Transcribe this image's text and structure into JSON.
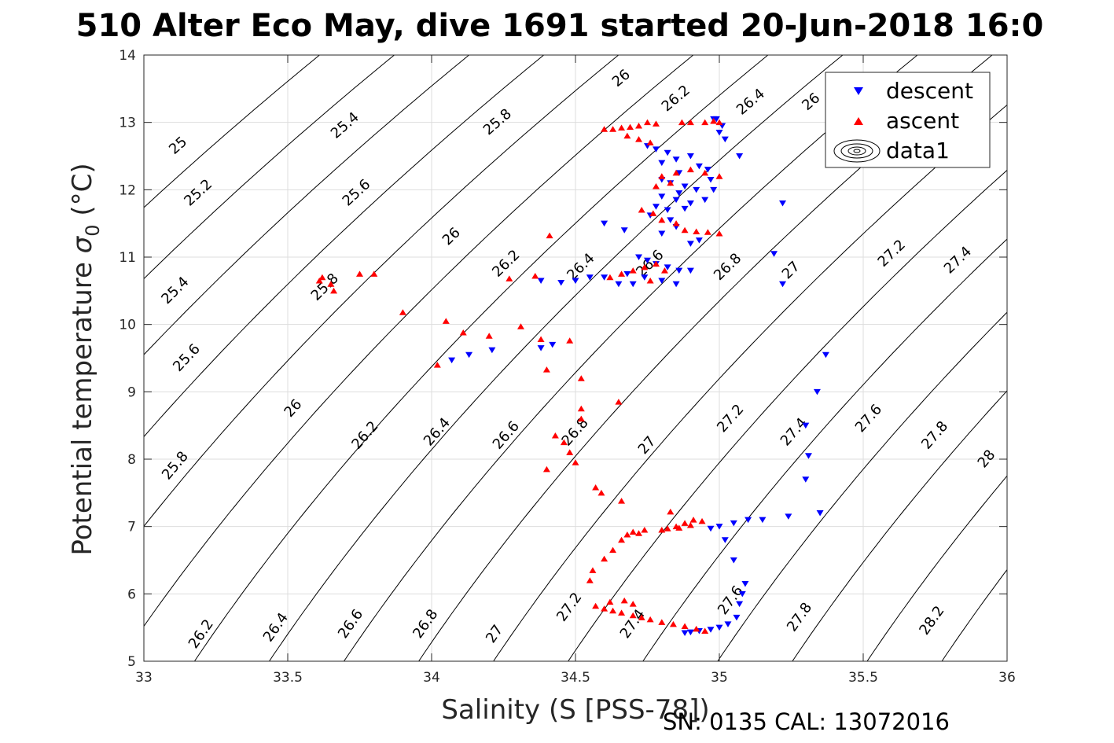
{
  "chart_data": {
    "type": "scatter",
    "title": "510 Alter Eco May, dive 1691 started 20-Jun-2018 16:0",
    "xlabel": "Salinity (S [PSS-78])",
    "ylabel_main": "Potential temperature ",
    "ylabel_sigma": "σ",
    "ylabel_sub": "0",
    "ylabel_unit": " (°C)",
    "footer": "SN: 0135  CAL: 13072016",
    "xlim": [
      33,
      36
    ],
    "ylim": [
      5,
      14
    ],
    "xticks": [
      "33",
      "33.5",
      "34",
      "34.5",
      "35",
      "35.5",
      "36"
    ],
    "yticks": [
      "5",
      "6",
      "7",
      "8",
      "9",
      "10",
      "11",
      "12",
      "13",
      "14"
    ],
    "grid": true,
    "legend_position": "top-right",
    "legend": [
      {
        "label": "descent",
        "color": "#0000ff",
        "marker": "triangle-down"
      },
      {
        "label": "ascent",
        "color": "#ff0000",
        "marker": "triangle-up"
      },
      {
        "label": "data1",
        "color": "#000000",
        "marker": "contour"
      }
    ],
    "contours": [
      {
        "level": 25.0,
        "label": "25"
      },
      {
        "level": 25.2,
        "label": "25.2"
      },
      {
        "level": 25.4,
        "label": "25.4"
      },
      {
        "level": 25.6,
        "label": "25.6"
      },
      {
        "level": 25.8,
        "label": "25.8"
      },
      {
        "level": 26.0,
        "label": "26"
      },
      {
        "level": 26.2,
        "label": "26.2"
      },
      {
        "level": 26.4,
        "label": "26.4"
      },
      {
        "level": 26.6,
        "label": "26.6"
      },
      {
        "level": 26.8,
        "label": "26.8"
      },
      {
        "level": 27.0,
        "label": "27"
      },
      {
        "level": 27.2,
        "label": "27.2"
      },
      {
        "level": 27.4,
        "label": "27.4"
      },
      {
        "level": 27.6,
        "label": "27.6"
      },
      {
        "level": 27.8,
        "label": "27.8"
      },
      {
        "level": 28.0,
        "label": "28"
      },
      {
        "level": 28.2,
        "label": "28.2"
      }
    ],
    "contour_labels": [
      {
        "text": "25",
        "x": 33.12,
        "y": 12.65
      },
      {
        "text": "25.2",
        "x": 33.19,
        "y": 11.95
      },
      {
        "text": "25.4",
        "x": 33.11,
        "y": 10.5
      },
      {
        "text": "25.6",
        "x": 33.15,
        "y": 9.5
      },
      {
        "text": "25.8",
        "x": 33.11,
        "y": 7.9
      },
      {
        "text": "26.2",
        "x": 33.2,
        "y": 5.4
      },
      {
        "text": "25.4",
        "x": 33.7,
        "y": 12.95
      },
      {
        "text": "25.6",
        "x": 33.74,
        "y": 11.95
      },
      {
        "text": "25.8",
        "x": 33.63,
        "y": 10.55
      },
      {
        "text": "26",
        "x": 33.52,
        "y": 8.75
      },
      {
        "text": "26.4",
        "x": 33.46,
        "y": 5.5
      },
      {
        "text": "25.8",
        "x": 34.23,
        "y": 13.0
      },
      {
        "text": "26",
        "x": 34.07,
        "y": 11.3
      },
      {
        "text": "26.2",
        "x": 33.77,
        "y": 8.35
      },
      {
        "text": "26.6",
        "x": 33.72,
        "y": 5.55
      },
      {
        "text": "26",
        "x": 34.66,
        "y": 13.65
      },
      {
        "text": "26.2",
        "x": 34.26,
        "y": 10.9
      },
      {
        "text": "26.4",
        "x": 34.02,
        "y": 8.4
      },
      {
        "text": "26.8",
        "x": 33.98,
        "y": 5.55
      },
      {
        "text": "26.2",
        "x": 34.85,
        "y": 13.35
      },
      {
        "text": "26.4",
        "x": 34.52,
        "y": 10.85
      },
      {
        "text": "26.6",
        "x": 34.26,
        "y": 8.35
      },
      {
        "text": "27",
        "x": 34.22,
        "y": 5.4
      },
      {
        "text": "26.4",
        "x": 35.11,
        "y": 13.3
      },
      {
        "text": "26.6",
        "x": 34.76,
        "y": 10.9
      },
      {
        "text": "26.8",
        "x": 34.5,
        "y": 8.4
      },
      {
        "text": "27.2",
        "x": 34.48,
        "y": 5.8
      },
      {
        "text": "26",
        "x": 35.32,
        "y": 13.3
      },
      {
        "text": "26.8",
        "x": 35.03,
        "y": 10.85
      },
      {
        "text": "27",
        "x": 34.75,
        "y": 8.2
      },
      {
        "text": "27.4",
        "x": 34.7,
        "y": 5.55
      },
      {
        "text": "27",
        "x": 35.25,
        "y": 10.8
      },
      {
        "text": "27.2",
        "x": 35.04,
        "y": 8.6
      },
      {
        "text": "27.6",
        "x": 35.04,
        "y": 5.9
      },
      {
        "text": "27.2",
        "x": 35.6,
        "y": 11.05
      },
      {
        "text": "27.4",
        "x": 35.26,
        "y": 8.4
      },
      {
        "text": "27.8",
        "x": 35.28,
        "y": 5.65
      },
      {
        "text": "27.4",
        "x": 35.83,
        "y": 10.95
      },
      {
        "text": "27.6",
        "x": 35.52,
        "y": 8.6
      },
      {
        "text": "27.8",
        "x": 35.75,
        "y": 8.35
      },
      {
        "text": "28",
        "x": 35.93,
        "y": 8.0
      },
      {
        "text": "28.2",
        "x": 35.74,
        "y": 5.6
      }
    ],
    "series": [
      {
        "name": "descent",
        "color": "#0000ff",
        "marker": "triangle-down",
        "points": [
          [
            34.75,
            12.65
          ],
          [
            34.78,
            12.6
          ],
          [
            34.82,
            12.55
          ],
          [
            34.85,
            12.45
          ],
          [
            34.8,
            12.4
          ],
          [
            34.9,
            12.5
          ],
          [
            34.93,
            12.35
          ],
          [
            34.86,
            12.25
          ],
          [
            34.8,
            12.15
          ],
          [
            34.83,
            12.1
          ],
          [
            34.88,
            12.05
          ],
          [
            34.92,
            12.0
          ],
          [
            34.86,
            11.95
          ],
          [
            34.8,
            11.9
          ],
          [
            34.85,
            11.85
          ],
          [
            34.9,
            11.8
          ],
          [
            34.95,
            11.85
          ],
          [
            34.78,
            11.75
          ],
          [
            34.82,
            11.7
          ],
          [
            34.88,
            11.72
          ],
          [
            34.76,
            11.62
          ],
          [
            34.83,
            11.55
          ],
          [
            34.85,
            11.45
          ],
          [
            34.8,
            11.35
          ],
          [
            34.96,
            12.3
          ],
          [
            34.98,
            12.0
          ],
          [
            34.97,
            12.15
          ],
          [
            34.9,
            11.2
          ],
          [
            34.93,
            11.25
          ],
          [
            34.6,
            11.5
          ],
          [
            34.67,
            11.4
          ],
          [
            35.07,
            12.5
          ],
          [
            35.22,
            11.8
          ],
          [
            35.19,
            11.05
          ],
          [
            34.99,
            13.05
          ],
          [
            35.01,
            12.95
          ],
          [
            35.0,
            12.85
          ],
          [
            35.02,
            12.75
          ],
          [
            34.98,
            13.05
          ],
          [
            34.72,
            11.0
          ],
          [
            34.75,
            10.95
          ],
          [
            34.78,
            10.9
          ],
          [
            34.82,
            10.85
          ],
          [
            34.86,
            10.8
          ],
          [
            34.9,
            10.8
          ],
          [
            34.68,
            10.75
          ],
          [
            34.74,
            10.7
          ],
          [
            34.8,
            10.65
          ],
          [
            34.85,
            10.6
          ],
          [
            34.65,
            10.6
          ],
          [
            34.7,
            10.6
          ],
          [
            34.6,
            10.7
          ],
          [
            34.55,
            10.7
          ],
          [
            34.5,
            10.65
          ],
          [
            34.45,
            10.62
          ],
          [
            34.38,
            10.65
          ],
          [
            35.22,
            10.6
          ],
          [
            34.07,
            9.47
          ],
          [
            34.13,
            9.55
          ],
          [
            34.21,
            9.62
          ],
          [
            34.38,
            9.65
          ],
          [
            34.42,
            9.7
          ],
          [
            35.37,
            9.55
          ],
          [
            35.34,
            9.0
          ],
          [
            35.3,
            8.5
          ],
          [
            35.31,
            8.05
          ],
          [
            35.3,
            7.7
          ],
          [
            35.35,
            7.2
          ],
          [
            35.24,
            7.15
          ],
          [
            35.15,
            7.1
          ],
          [
            35.1,
            7.1
          ],
          [
            35.05,
            7.05
          ],
          [
            35.0,
            7.0
          ],
          [
            34.97,
            6.97
          ],
          [
            35.02,
            6.8
          ],
          [
            35.05,
            6.5
          ],
          [
            35.09,
            6.15
          ],
          [
            35.08,
            6.0
          ],
          [
            35.07,
            5.85
          ],
          [
            35.06,
            5.65
          ],
          [
            35.03,
            5.55
          ],
          [
            35.0,
            5.5
          ],
          [
            34.97,
            5.47
          ],
          [
            34.93,
            5.45
          ],
          [
            34.9,
            5.43
          ],
          [
            34.88,
            5.42
          ]
        ]
      },
      {
        "name": "ascent",
        "color": "#ff0000",
        "marker": "triangle-up",
        "points": [
          [
            34.6,
            12.9
          ],
          [
            34.63,
            12.9
          ],
          [
            34.66,
            12.92
          ],
          [
            34.69,
            12.93
          ],
          [
            34.72,
            12.95
          ],
          [
            34.75,
            13.0
          ],
          [
            34.78,
            12.98
          ],
          [
            34.68,
            12.8
          ],
          [
            34.72,
            12.75
          ],
          [
            34.76,
            12.7
          ],
          [
            34.9,
            13.0
          ],
          [
            34.95,
            13.0
          ],
          [
            34.98,
            13.02
          ],
          [
            35.0,
            13.0
          ],
          [
            34.87,
            13.0
          ],
          [
            34.8,
            12.2
          ],
          [
            34.85,
            12.25
          ],
          [
            34.9,
            12.3
          ],
          [
            34.95,
            12.25
          ],
          [
            35.0,
            12.2
          ],
          [
            34.83,
            12.1
          ],
          [
            34.78,
            12.05
          ],
          [
            34.8,
            11.55
          ],
          [
            34.85,
            11.5
          ],
          [
            34.88,
            11.4
          ],
          [
            34.92,
            11.38
          ],
          [
            34.96,
            11.37
          ],
          [
            35.0,
            11.35
          ],
          [
            34.73,
            11.7
          ],
          [
            34.77,
            11.65
          ],
          [
            34.41,
            11.32
          ],
          [
            34.62,
            10.7
          ],
          [
            34.66,
            10.75
          ],
          [
            34.7,
            10.8
          ],
          [
            34.74,
            10.85
          ],
          [
            34.78,
            10.9
          ],
          [
            34.81,
            10.8
          ],
          [
            34.76,
            10.65
          ],
          [
            33.61,
            10.65
          ],
          [
            33.62,
            10.7
          ],
          [
            33.65,
            10.6
          ],
          [
            33.66,
            10.5
          ],
          [
            33.75,
            10.75
          ],
          [
            33.8,
            10.75
          ],
          [
            33.9,
            10.18
          ],
          [
            34.05,
            10.05
          ],
          [
            34.02,
            9.4
          ],
          [
            34.11,
            9.88
          ],
          [
            34.2,
            9.83
          ],
          [
            34.27,
            10.68
          ],
          [
            34.36,
            10.72
          ],
          [
            34.31,
            9.97
          ],
          [
            34.38,
            9.78
          ],
          [
            34.4,
            9.33
          ],
          [
            34.48,
            9.76
          ],
          [
            34.52,
            9.2
          ],
          [
            34.52,
            8.75
          ],
          [
            34.52,
            8.6
          ],
          [
            34.43,
            8.35
          ],
          [
            34.46,
            8.25
          ],
          [
            34.48,
            8.1
          ],
          [
            34.4,
            7.85
          ],
          [
            34.5,
            7.95
          ],
          [
            34.65,
            8.85
          ],
          [
            34.57,
            7.58
          ],
          [
            34.59,
            7.5
          ],
          [
            34.66,
            7.38
          ],
          [
            34.83,
            7.22
          ],
          [
            34.55,
            6.2
          ],
          [
            34.56,
            6.35
          ],
          [
            34.6,
            6.52
          ],
          [
            34.63,
            6.65
          ],
          [
            34.66,
            6.8
          ],
          [
            34.7,
            6.92
          ],
          [
            34.74,
            6.95
          ],
          [
            34.8,
            6.95
          ],
          [
            34.85,
            7.0
          ],
          [
            34.88,
            7.05
          ],
          [
            34.91,
            7.1
          ],
          [
            34.94,
            7.08
          ],
          [
            34.68,
            6.88
          ],
          [
            34.72,
            6.9
          ],
          [
            34.82,
            6.97
          ],
          [
            34.86,
            6.98
          ],
          [
            34.9,
            7.02
          ],
          [
            34.57,
            5.82
          ],
          [
            34.6,
            5.78
          ],
          [
            34.63,
            5.75
          ],
          [
            34.66,
            5.72
          ],
          [
            34.7,
            5.68
          ],
          [
            34.73,
            5.65
          ],
          [
            34.76,
            5.62
          ],
          [
            34.8,
            5.58
          ],
          [
            34.84,
            5.55
          ],
          [
            34.88,
            5.52
          ],
          [
            34.92,
            5.48
          ],
          [
            34.95,
            5.45
          ],
          [
            34.67,
            5.9
          ],
          [
            34.7,
            5.85
          ],
          [
            34.62,
            5.88
          ]
        ]
      }
    ]
  }
}
